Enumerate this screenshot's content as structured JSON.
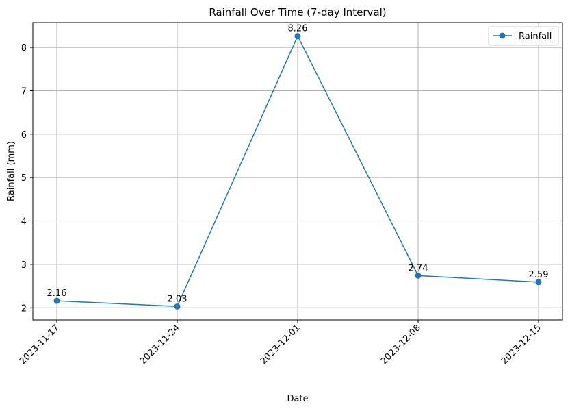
{
  "chart_data": {
    "type": "line",
    "title": "Rainfall Over Time (7-day Interval)",
    "xlabel": "Date",
    "ylabel": "Rainfall (mm)",
    "x": [
      "2023-11-17",
      "2023-11-24",
      "2023-12-01",
      "2023-12-08",
      "2023-12-15"
    ],
    "y_ticks": [
      2,
      3,
      4,
      5,
      6,
      7,
      8
    ],
    "ylim": [
      1.72,
      8.57
    ],
    "grid": true,
    "legend_position": "top-right",
    "series": [
      {
        "name": "Rainfall",
        "color": "#1f77b4",
        "marker": "circle",
        "values": [
          2.16,
          2.03,
          8.26,
          2.74,
          2.59
        ],
        "data_labels": [
          "2.16",
          "2.03",
          "8.26",
          "2.74",
          "2.59"
        ]
      }
    ]
  }
}
